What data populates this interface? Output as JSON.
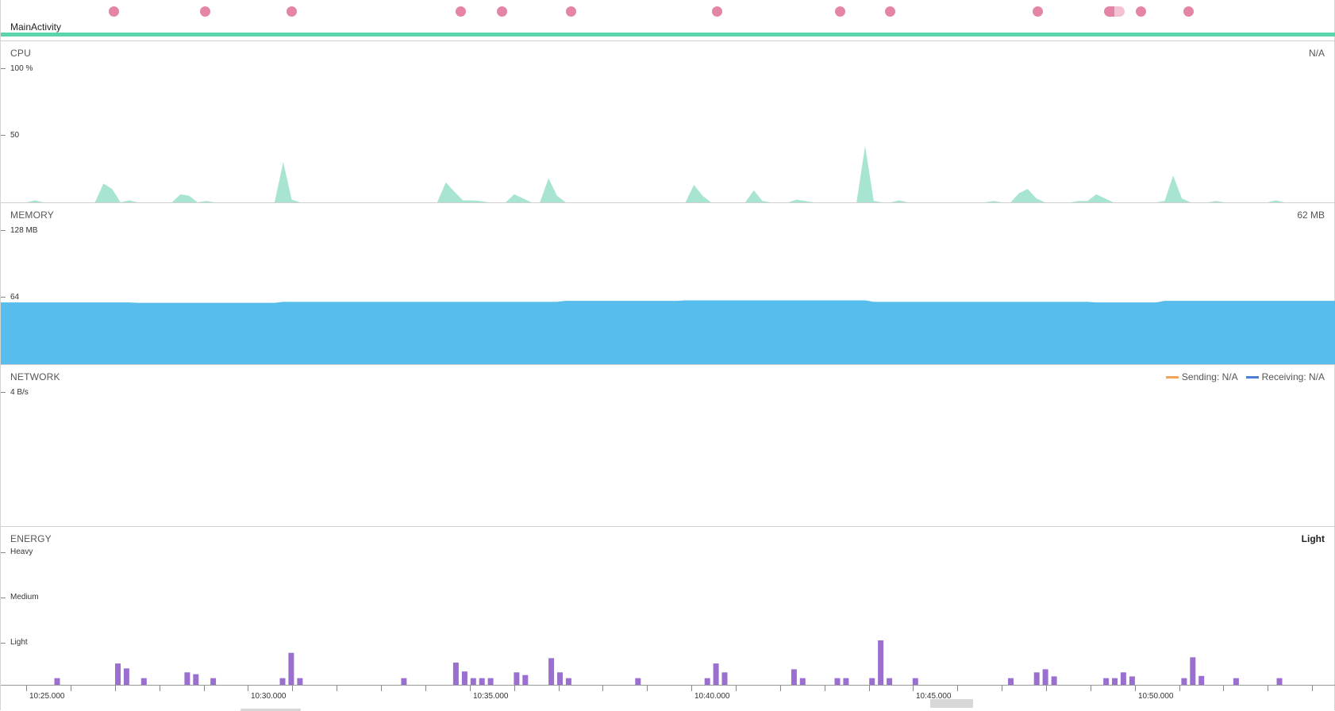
{
  "events": {
    "activity_label": "MainActivity",
    "count": 14,
    "accent_color": "#5bd3ac",
    "dot_color": "#e485a8"
  },
  "cpu": {
    "title": "CPU",
    "value": "N/A",
    "axis": [
      "100 %",
      "50"
    ],
    "color": "#a7e4d1",
    "samples": [
      0,
      0,
      0,
      0,
      1.5,
      0,
      0,
      0,
      0,
      0,
      0,
      0,
      14,
      10,
      0,
      1.5,
      0,
      0,
      0,
      0,
      0,
      6,
      5,
      0,
      1,
      0,
      0,
      0,
      0,
      0,
      0,
      0,
      0,
      30,
      2,
      0,
      0,
      0,
      0,
      0,
      0,
      0,
      0,
      0,
      0,
      0,
      0,
      0,
      0,
      0,
      0,
      0,
      15,
      8,
      1.5,
      1.5,
      1,
      0,
      0,
      0,
      6,
      3,
      0,
      0,
      18,
      5,
      0,
      0,
      0,
      0,
      0,
      0,
      0,
      0,
      0,
      0,
      0,
      0,
      0,
      0,
      0,
      13,
      5,
      0,
      0,
      0,
      0,
      0,
      9,
      1,
      0,
      0,
      0,
      2,
      1,
      0,
      0,
      0,
      0,
      0,
      0,
      42,
      1,
      0,
      0,
      1.5,
      0,
      0,
      0,
      0,
      0,
      0,
      0,
      0,
      0,
      0,
      1,
      0,
      0,
      7,
      10,
      3,
      0,
      0,
      0,
      0,
      1,
      1,
      6,
      3,
      0,
      0,
      0,
      0,
      0,
      0,
      1,
      20,
      3,
      0,
      0,
      0,
      1,
      0,
      0,
      0,
      0,
      0,
      0,
      1.5,
      0,
      0,
      0,
      0,
      0,
      0,
      0
    ]
  },
  "memory": {
    "title": "MEMORY",
    "value": "62 MB",
    "axis": [
      "128 MB",
      "64"
    ],
    "color": "#56bdec",
    "samples": [
      59,
      59,
      59,
      59,
      59,
      59,
      59,
      59,
      59,
      59,
      59,
      59,
      59,
      59,
      59,
      59,
      58.6,
      58.6,
      58.6,
      58.6,
      58.6,
      58.6,
      58.6,
      58.6,
      58.6,
      58.6,
      58.6,
      58.6,
      58.6,
      58.6,
      58.6,
      58.6,
      58.6,
      59.5,
      59.5,
      59.5,
      59.5,
      59.5,
      59.5,
      59.5,
      59.5,
      59.5,
      59.5,
      59.5,
      59.5,
      59.5,
      59.5,
      59.5,
      59.5,
      59.5,
      59.5,
      59.5,
      59.5,
      59.5,
      59.5,
      59.5,
      59.5,
      59.5,
      59.5,
      59.5,
      59.5,
      59.5,
      59.5,
      59.5,
      59.5,
      59.5,
      60.5,
      60.5,
      60.5,
      60.5,
      60.5,
      60.5,
      60.5,
      60.5,
      60.5,
      60.5,
      60.5,
      60.5,
      60.5,
      60.5,
      61,
      61,
      61,
      61,
      61,
      61,
      61,
      61,
      61,
      61,
      61,
      61,
      61,
      61,
      61,
      61,
      61,
      61,
      61,
      61,
      61,
      61,
      59.5,
      59.5,
      59.5,
      59.5,
      59.5,
      59.5,
      59.5,
      59.5,
      59.5,
      59.5,
      59.5,
      59.5,
      59.5,
      59.5,
      59.5,
      59.5,
      59.5,
      59.5,
      59.5,
      59.5,
      59.5,
      59.5,
      59.5,
      59.5,
      59.5,
      59.5,
      59,
      59,
      59,
      59,
      59,
      59,
      59,
      59,
      60.5,
      60.5,
      60.5,
      60.5,
      60.5,
      60.5,
      60.5,
      60.5,
      60.5,
      60.5,
      60.5,
      60.5,
      60.5,
      60.5,
      60.5,
      60.5,
      60.5,
      60.5,
      60.5,
      60.5,
      60.5
    ]
  },
  "network": {
    "title": "NETWORK",
    "axis": [
      "4 B/s"
    ],
    "sending_label": "Sending: N/A",
    "receiving_label": "Receiving: N/A",
    "sending_color": "#f0a35a",
    "receiving_color": "#4a7fd6"
  },
  "energy": {
    "title": "ENERGY",
    "value": "Light",
    "axis": [
      "Heavy",
      "Medium",
      "Light"
    ],
    "color": "#9a6fcf",
    "samples": [
      0,
      0,
      0,
      0,
      0,
      0,
      0.15,
      0,
      0,
      0,
      0,
      0,
      0,
      0.48,
      0.37,
      0,
      0.15,
      0,
      0,
      0,
      0,
      0.28,
      0.24,
      0,
      0.15,
      0,
      0,
      0,
      0,
      0,
      0,
      0,
      0.15,
      0.72,
      0.15,
      0,
      0,
      0,
      0,
      0,
      0,
      0,
      0,
      0,
      0,
      0,
      0.15,
      0,
      0,
      0,
      0,
      0,
      0.5,
      0.3,
      0.15,
      0.15,
      0.15,
      0,
      0,
      0.28,
      0.22,
      0,
      0,
      0.6,
      0.28,
      0.15,
      0,
      0,
      0,
      0,
      0,
      0,
      0,
      0.15,
      0,
      0,
      0,
      0,
      0,
      0,
      0,
      0.15,
      0.48,
      0.28,
      0,
      0,
      0,
      0,
      0,
      0,
      0,
      0.35,
      0.15,
      0,
      0,
      0,
      0.15,
      0.15,
      0,
      0,
      0.15,
      1.0,
      0.15,
      0,
      0,
      0.15,
      0,
      0,
      0,
      0,
      0,
      0,
      0,
      0,
      0,
      0,
      0.15,
      0,
      0,
      0.28,
      0.35,
      0.19,
      0,
      0,
      0,
      0,
      0,
      0.15,
      0.15,
      0.28,
      0.19,
      0,
      0,
      0,
      0,
      0,
      0.15,
      0.62,
      0.2,
      0,
      0,
      0,
      0.15,
      0,
      0,
      0,
      0,
      0.15,
      0,
      0,
      0,
      0,
      0,
      0
    ]
  },
  "time_axis": {
    "labels": [
      "10:25.000",
      "10:30.000",
      "10:35.000",
      "10:40.000",
      "10:45.000",
      "10:50.000"
    ]
  }
}
